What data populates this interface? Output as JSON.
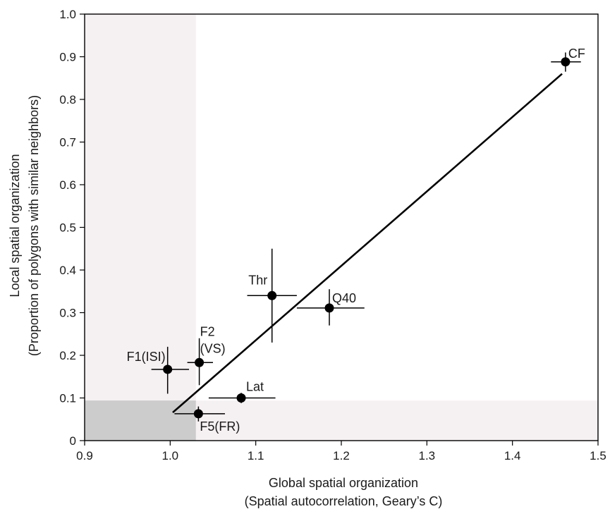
{
  "chart_data": {
    "type": "scatter",
    "xlabel": "Global spatial organization",
    "xlabel_sub": "(Spatial  autocorrelation, Geary’s C)",
    "ylabel": "Local spatial organization",
    "ylabel_sub": "(Proportion of polygons with similar neighbors)",
    "xlim": [
      0.9,
      1.5
    ],
    "ylim": [
      0,
      1.0
    ],
    "x_ticks": [
      "0.9",
      "1.0",
      "1.1",
      "1.2",
      "1.3",
      "1.4",
      "1.5"
    ],
    "y_ticks": [
      "0",
      "0.1",
      "0.2",
      "0.3",
      "0.4",
      "0.5",
      "0.6",
      "0.7",
      "0.8",
      "0.9",
      "1.0"
    ],
    "grid": false,
    "shaded_regions": [
      {
        "x": [
          0.9,
          1.03
        ],
        "y": [
          0,
          1.0
        ],
        "color": "#f5f0f2"
      },
      {
        "x": [
          0.9,
          1.5
        ],
        "y": [
          0,
          0.094
        ],
        "color": "#f5f0f2"
      },
      {
        "x": [
          0.9,
          1.03
        ],
        "y": [
          0,
          0.094
        ],
        "color": "#cccccc"
      }
    ],
    "points": [
      {
        "label": "CF",
        "x": 1.462,
        "y": 0.888,
        "x_err": [
          1.445,
          1.48
        ],
        "y_err": [
          0.865,
          0.91
        ]
      },
      {
        "label": "Thr",
        "x": 1.119,
        "y": 0.34,
        "x_err": [
          1.09,
          1.148
        ],
        "y_err": [
          0.23,
          0.45
        ]
      },
      {
        "label": "Q40",
        "x": 1.186,
        "y": 0.311,
        "x_err": [
          1.148,
          1.227
        ],
        "y_err": [
          0.27,
          0.355
        ]
      },
      {
        "label": "F2\n(VS)",
        "x": 1.034,
        "y": 0.183,
        "x_err": [
          1.02,
          1.05
        ],
        "y_err": [
          0.13,
          0.24
        ]
      },
      {
        "label": "F1(ISI)",
        "x": 0.997,
        "y": 0.167,
        "x_err": [
          0.978,
          1.022
        ],
        "y_err": [
          0.11,
          0.22
        ]
      },
      {
        "label": "Lat",
        "x": 1.083,
        "y": 0.1,
        "x_err": [
          1.045,
          1.123
        ],
        "y_err": [
          0.088,
          0.112
        ]
      },
      {
        "label": "F5(FR)",
        "x": 1.033,
        "y": 0.063,
        "x_err": [
          1.005,
          1.064
        ],
        "y_err": [
          0.045,
          0.08
        ]
      }
    ],
    "fit_line": {
      "x": [
        1.003,
        1.458
      ],
      "y": [
        0.066,
        0.86
      ]
    }
  },
  "colors": {
    "light_shade": "#f5f0f2",
    "dark_shade": "#cccccc",
    "marker": "#000000",
    "text": "#1a1a1a"
  }
}
